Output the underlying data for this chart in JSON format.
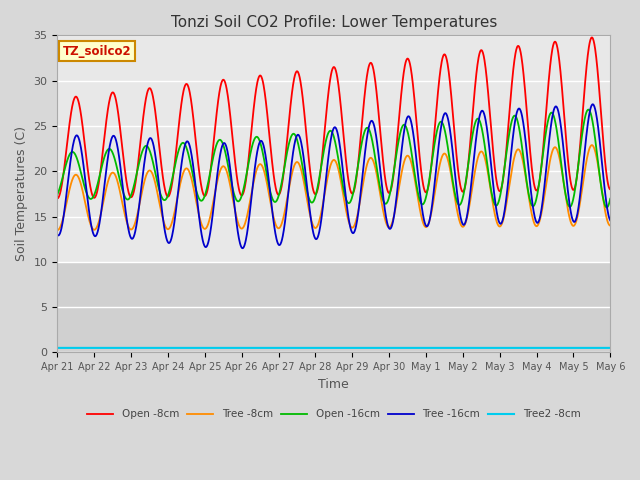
{
  "title": "Tonzi Soil CO2 Profile: Lower Temperatures",
  "xlabel": "Time",
  "ylabel": "Soil Temperatures (C)",
  "ylim": [
    0,
    35
  ],
  "xlim": [
    0,
    15
  ],
  "legend_label": "TZ_soilco2",
  "series_labels": [
    "Open -8cm",
    "Tree -8cm",
    "Open -16cm",
    "Tree -16cm",
    "Tree2 -8cm"
  ],
  "series_colors": [
    "#ff0000",
    "#ff8c00",
    "#00bb00",
    "#0000cc",
    "#00ccee"
  ],
  "xtick_labels": [
    "Apr 21",
    "Apr 22",
    "Apr 23",
    "Apr 24",
    "Apr 25",
    "Apr 26",
    "Apr 27",
    "Apr 28",
    "Apr 29",
    "Apr 30",
    "May 1",
    "May 2",
    "May 3",
    "May 4",
    "May 5",
    "May 6"
  ],
  "xtick_positions": [
    0,
    1,
    2,
    3,
    4,
    5,
    6,
    7,
    8,
    9,
    10,
    11,
    12,
    13,
    14,
    15
  ],
  "ytick_labels": [
    "0",
    "5",
    "10",
    "15",
    "20",
    "25",
    "30",
    "35"
  ],
  "ytick_positions": [
    0,
    5,
    10,
    15,
    20,
    25,
    30,
    35
  ],
  "n_points": 1500
}
